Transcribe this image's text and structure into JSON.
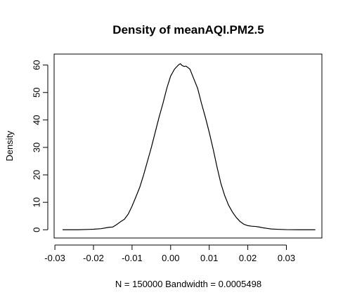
{
  "chart_data": {
    "type": "line",
    "title": "Density of meanAQI.PM2.5",
    "xlabel": "N = 150000   Bandwidth = 0.0005498",
    "ylabel": "Density",
    "xlim": [
      -0.0302,
      0.0392
    ],
    "ylim": [
      -3,
      64
    ],
    "x_ticks": [
      -0.03,
      -0.02,
      -0.01,
      0.0,
      0.01,
      0.02,
      0.03
    ],
    "x_tick_labels": [
      "-0.03",
      "-0.02",
      "-0.01",
      "0.00",
      "0.01",
      "0.02",
      "0.03"
    ],
    "y_ticks": [
      0,
      10,
      20,
      30,
      40,
      50,
      60
    ],
    "y_tick_labels": [
      "0",
      "10",
      "20",
      "30",
      "40",
      "50",
      "60"
    ],
    "grid": false,
    "legend": "none",
    "series": [
      {
        "color": "#000000",
        "x": [
          -0.028,
          -0.024,
          -0.02,
          -0.018,
          -0.016,
          -0.015,
          -0.014,
          -0.013,
          -0.012,
          -0.011,
          -0.01,
          -0.009,
          -0.008,
          -0.007,
          -0.006,
          -0.005,
          -0.004,
          -0.003,
          -0.002,
          -0.001,
          0.0,
          0.001,
          0.002,
          0.0025,
          0.003,
          0.0035,
          0.004,
          0.005,
          0.006,
          0.007,
          0.008,
          0.009,
          0.01,
          0.011,
          0.012,
          0.013,
          0.014,
          0.015,
          0.016,
          0.017,
          0.018,
          0.019,
          0.02,
          0.021,
          0.022,
          0.023,
          0.024,
          0.025,
          0.026,
          0.028,
          0.03,
          0.033,
          0.0375
        ],
        "y": [
          0.0,
          0.0,
          0.2,
          0.4,
          0.9,
          1.0,
          1.9,
          2.9,
          3.8,
          5.7,
          8.6,
          12.0,
          15.5,
          20.0,
          25.0,
          30.0,
          35.5,
          41.0,
          46.0,
          51.5,
          56.0,
          58.5,
          60.0,
          60.5,
          59.8,
          59.5,
          59.6,
          58.5,
          55.0,
          51.5,
          46.0,
          41.0,
          35.5,
          29.5,
          23.0,
          17.0,
          12.5,
          9.0,
          6.5,
          4.5,
          3.0,
          2.0,
          1.5,
          1.3,
          1.2,
          1.0,
          0.7,
          0.5,
          0.3,
          0.15,
          0.05,
          0.0,
          0.0
        ]
      }
    ]
  }
}
